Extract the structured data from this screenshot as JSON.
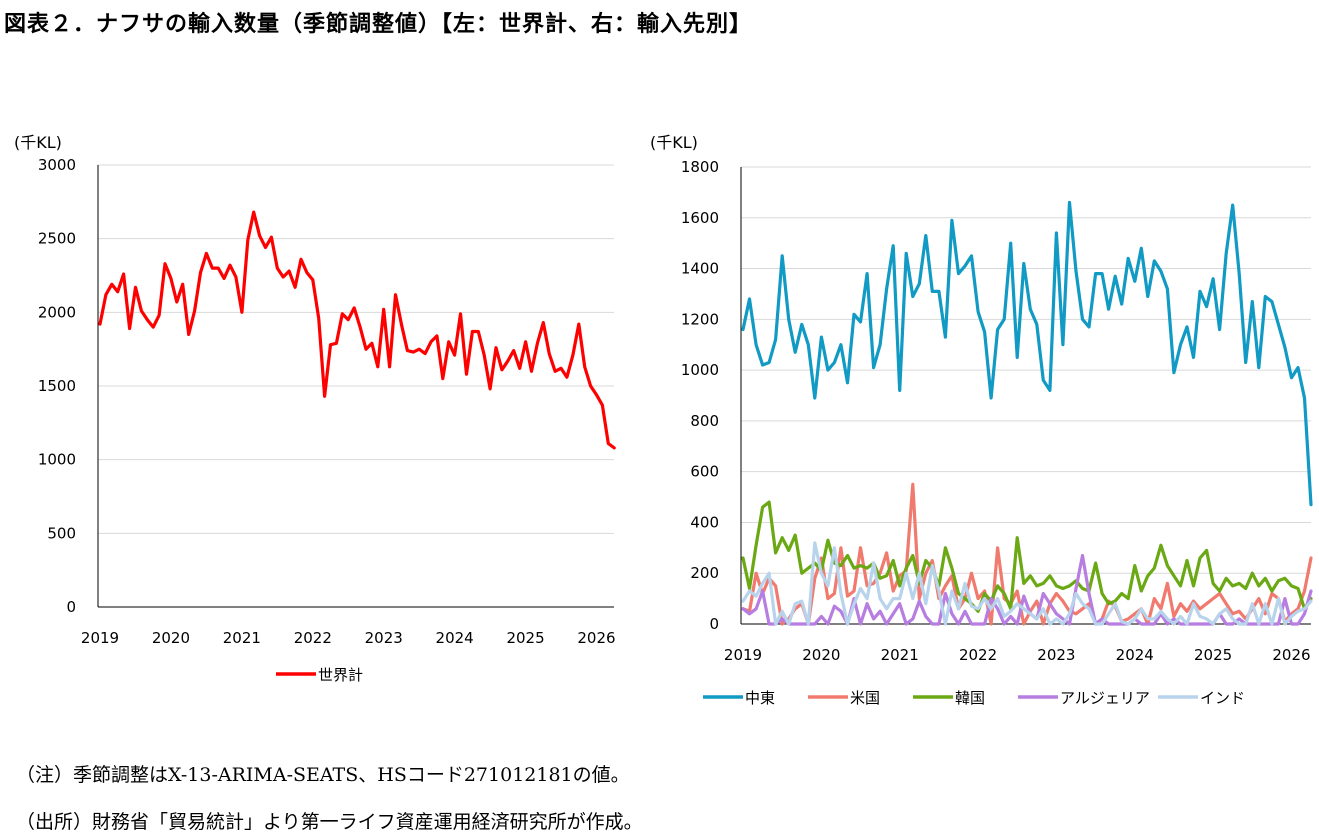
{
  "title": "図表２．ナフサの輸入数量（季節調整値）【左：世界計、右：輸入先別】",
  "notes": {
    "note1": "（注）季節調整はX-13-ARIMA-SEATS、HSコード271012181の値。",
    "note2": "（出所）財務省「貿易統計」より第一ライフ資産運用経済研究所が作成。"
  },
  "chart_data": [
    {
      "type": "line",
      "unit_label": "(千KL)",
      "ylim": [
        0,
        3000
      ],
      "yticks": [
        "0",
        "500",
        "1000",
        "1500",
        "2000",
        "2500",
        "3000"
      ],
      "xticks": [
        "2019",
        "2020",
        "2021",
        "2022",
        "2023",
        "2024",
        "2025",
        "2026"
      ],
      "x_start": "2019-01",
      "grid": true,
      "legend_position": "bottom",
      "series": [
        {
          "name": "世界計",
          "color": "#ff0000",
          "values": [
            1920,
            2120,
            2190,
            2140,
            2260,
            1890,
            2170,
            2010,
            1950,
            1900,
            1980,
            2330,
            2230,
            2070,
            2190,
            1850,
            2010,
            2270,
            2400,
            2300,
            2300,
            2230,
            2320,
            2240,
            2000,
            2490,
            2680,
            2520,
            2440,
            2510,
            2300,
            2240,
            2280,
            2170,
            2360,
            2270,
            2220,
            1960,
            1430,
            1780,
            1790,
            1990,
            1950,
            2030,
            1900,
            1750,
            1790,
            1630,
            2020,
            1630,
            2120,
            1920,
            1740,
            1730,
            1750,
            1720,
            1800,
            1840,
            1550,
            1800,
            1710,
            1990,
            1580,
            1870,
            1870,
            1710,
            1480,
            1760,
            1610,
            1670,
            1740,
            1620,
            1800,
            1600,
            1790,
            1930,
            1720,
            1600,
            1620,
            1560,
            1710,
            1920,
            1630,
            1500,
            1440,
            1370,
            1110,
            1080
          ]
        }
      ]
    },
    {
      "type": "line",
      "unit_label": "(千KL)",
      "ylim": [
        0,
        1800
      ],
      "yticks": [
        "0",
        "200",
        "400",
        "600",
        "800",
        "1000",
        "1200",
        "1400",
        "1600",
        "1800"
      ],
      "xticks": [
        "2019",
        "2020",
        "2021",
        "2022",
        "2023",
        "2024",
        "2025",
        "2026"
      ],
      "x_start": "2019-01",
      "grid": true,
      "legend_position": "bottom",
      "series": [
        {
          "name": "中東",
          "color": "#109ac4",
          "values": [
            1160,
            1280,
            1100,
            1020,
            1030,
            1120,
            1450,
            1200,
            1070,
            1180,
            1100,
            890,
            1130,
            1000,
            1030,
            1100,
            950,
            1220,
            1190,
            1380,
            1010,
            1100,
            1320,
            1490,
            920,
            1460,
            1290,
            1340,
            1530,
            1310,
            1310,
            1130,
            1590,
            1380,
            1410,
            1450,
            1230,
            1150,
            890,
            1160,
            1200,
            1500,
            1050,
            1420,
            1240,
            1180,
            960,
            920,
            1540,
            1100,
            1660,
            1390,
            1200,
            1170,
            1380,
            1380,
            1240,
            1370,
            1260,
            1440,
            1350,
            1480,
            1290,
            1430,
            1390,
            1320,
            990,
            1100,
            1170,
            1050,
            1310,
            1250,
            1360,
            1160,
            1460,
            1650,
            1380,
            1030,
            1270,
            1010,
            1290,
            1270,
            1180,
            1090,
            970,
            1010,
            890,
            470
          ]
        },
        {
          "name": "米国",
          "color": "#f07a6e",
          "values": [
            60,
            50,
            200,
            120,
            180,
            150,
            0,
            20,
            60,
            80,
            0,
            180,
            260,
            100,
            120,
            300,
            110,
            130,
            300,
            150,
            160,
            200,
            280,
            130,
            190,
            210,
            550,
            100,
            200,
            250,
            100,
            150,
            190,
            60,
            100,
            200,
            100,
            130,
            0,
            300,
            100,
            80,
            130,
            0,
            50,
            90,
            0,
            80,
            120,
            90,
            50,
            40,
            60,
            80,
            0,
            20,
            90,
            70,
            10,
            20,
            40,
            60,
            0,
            100,
            60,
            160,
            30,
            80,
            50,
            90,
            60,
            80,
            100,
            120,
            80,
            40,
            50,
            20,
            60,
            100,
            40,
            120,
            100,
            10,
            40,
            60,
            130,
            260
          ]
        },
        {
          "name": "韓国",
          "color": "#6aa814",
          "values": [
            260,
            140,
            310,
            460,
            480,
            280,
            340,
            290,
            350,
            200,
            220,
            240,
            210,
            330,
            240,
            230,
            270,
            220,
            230,
            220,
            240,
            180,
            190,
            250,
            150,
            220,
            270,
            160,
            250,
            220,
            150,
            300,
            220,
            120,
            100,
            80,
            50,
            120,
            90,
            150,
            120,
            60,
            340,
            160,
            190,
            150,
            160,
            190,
            150,
            140,
            150,
            170,
            140,
            130,
            240,
            120,
            80,
            90,
            120,
            100,
            230,
            130,
            190,
            220,
            310,
            230,
            190,
            150,
            250,
            150,
            260,
            290,
            160,
            130,
            180,
            150,
            160,
            140,
            200,
            150,
            180,
            130,
            170,
            180,
            150,
            140,
            60,
            100
          ]
        },
        {
          "name": "アルジェリア",
          "color": "#b77de0",
          "values": [
            60,
            40,
            60,
            130,
            0,
            0,
            20,
            0,
            0,
            0,
            0,
            0,
            30,
            0,
            70,
            50,
            0,
            100,
            0,
            80,
            20,
            50,
            0,
            40,
            80,
            0,
            20,
            90,
            30,
            0,
            0,
            120,
            40,
            0,
            50,
            0,
            0,
            0,
            100,
            60,
            0,
            30,
            0,
            110,
            40,
            20,
            120,
            80,
            40,
            20,
            0,
            140,
            270,
            120,
            0,
            20,
            0,
            0,
            0,
            0,
            20,
            0,
            0,
            0,
            40,
            0,
            20,
            0,
            0,
            0,
            0,
            0,
            0,
            40,
            0,
            0,
            20,
            0,
            0,
            0,
            0,
            0,
            0,
            100,
            0,
            0,
            40,
            130
          ]
        },
        {
          "name": "インド",
          "color": "#b8d3ec",
          "values": [
            90,
            130,
            110,
            160,
            200,
            0,
            50,
            0,
            80,
            90,
            0,
            320,
            200,
            150,
            300,
            120,
            0,
            80,
            140,
            100,
            240,
            100,
            60,
            100,
            100,
            200,
            100,
            200,
            80,
            230,
            130,
            0,
            130,
            60,
            160,
            70,
            60,
            100,
            60,
            100,
            30,
            50,
            80,
            60,
            40,
            20,
            60,
            0,
            20,
            0,
            40,
            120,
            80,
            60,
            0,
            0,
            40,
            80,
            10,
            0,
            20,
            60,
            20,
            20,
            50,
            20,
            0,
            30,
            0,
            80,
            30,
            20,
            0,
            40,
            60,
            20,
            0,
            0,
            80,
            0,
            80,
            0,
            100,
            0,
            30,
            50,
            60,
            90
          ]
        }
      ]
    }
  ]
}
